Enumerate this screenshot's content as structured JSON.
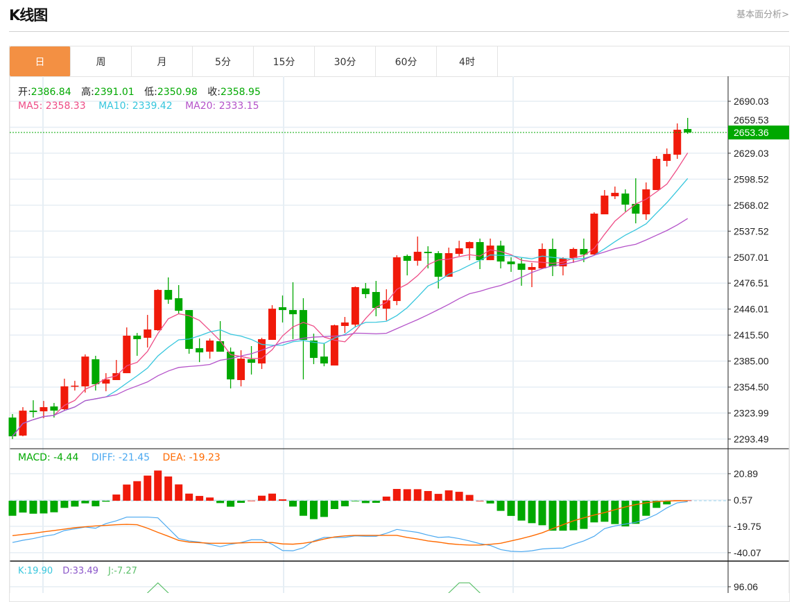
{
  "header": {
    "title": "K线图",
    "link": "基本面分析>"
  },
  "tabs": [
    {
      "label": "日",
      "active": true
    },
    {
      "label": "周"
    },
    {
      "label": "月"
    },
    {
      "label": "5分"
    },
    {
      "label": "15分"
    },
    {
      "label": "30分"
    },
    {
      "label": "60分"
    },
    {
      "label": "4时"
    }
  ],
  "ohlc_info": {
    "open_label": "开:",
    "open": "2386.84",
    "high_label": "高:",
    "high": "2391.01",
    "low_label": "低:",
    "low": "2350.98",
    "close_label": "收:",
    "close": "2358.95"
  },
  "ma_info": {
    "ma5": "MA5: 2358.33",
    "ma10": "MA10: 2339.42",
    "ma20": "MA20: 2333.15"
  },
  "macd_info": {
    "macd": "MACD: -4.44",
    "diff": "DIFF: -21.45",
    "dea": "DEA: -19.23"
  },
  "kdj_info": {
    "k": "K:19.90",
    "d": "D:33.49",
    "j": "J:-7.27"
  },
  "colors": {
    "up": "#f01a0a",
    "down": "#00a800",
    "ma5": "#ee4c86",
    "ma10": "#36c6dd",
    "ma20": "#b452c9",
    "diff": "#4aa8f0",
    "dea": "#ff6a00",
    "j": "#5cc06a",
    "active_tab": "#f39043"
  },
  "chart_data": [
    {
      "type": "candlestick",
      "title": "K线图",
      "ylim": [
        2293.49,
        2690.03
      ],
      "y_ticks": [
        "2690.03",
        "2659.53",
        "2629.03",
        "2598.52",
        "2568.02",
        "2537.52",
        "2507.01",
        "2476.51",
        "2446.01",
        "2415.50",
        "2385.00",
        "2354.50",
        "2323.99",
        "2293.49"
      ],
      "last_price": "2653.36",
      "ma_periods": [
        5,
        10,
        20
      ],
      "ohlc": [
        [
          2318.7,
          2322.8,
          2293.4,
          2296.7
        ],
        [
          2297.5,
          2330.9,
          2296.7,
          2326.8
        ],
        [
          2326.8,
          2339.0,
          2318.7,
          2325.2
        ],
        [
          2326.0,
          2338.2,
          2317.9,
          2330.9
        ],
        [
          2331.7,
          2335.8,
          2318.7,
          2326.8
        ],
        [
          2328.5,
          2364.3,
          2326.8,
          2355.3
        ],
        [
          2355.3,
          2361.8,
          2350.4,
          2356.1
        ],
        [
          2355.3,
          2392.8,
          2348.0,
          2390.3
        ],
        [
          2387.1,
          2391.2,
          2350.4,
          2357.8
        ],
        [
          2358.6,
          2370.8,
          2349.6,
          2363.5
        ],
        [
          2362.7,
          2386.3,
          2362.7,
          2370.8
        ],
        [
          2370.8,
          2424.5,
          2370.8,
          2414.8
        ],
        [
          2414.8,
          2418.0,
          2391.2,
          2410.7
        ],
        [
          2412.3,
          2439.2,
          2400.9,
          2422.1
        ],
        [
          2421.3,
          2469.3,
          2420.5,
          2468.5
        ],
        [
          2468.5,
          2483.2,
          2452.2,
          2457.1
        ],
        [
          2458.8,
          2474.2,
          2440.8,
          2444.1
        ],
        [
          2444.9,
          2444.9,
          2393.6,
          2399.3
        ],
        [
          2400.1,
          2411.5,
          2383.8,
          2395.2
        ],
        [
          2396.0,
          2411.5,
          2387.9,
          2409.1
        ],
        [
          2408.3,
          2431.9,
          2396.0,
          2396.0
        ],
        [
          2396.0,
          2400.9,
          2352.9,
          2363.5
        ],
        [
          2362.7,
          2397.7,
          2355.3,
          2387.9
        ],
        [
          2387.1,
          2402.6,
          2369.2,
          2383.0
        ],
        [
          2382.2,
          2412.3,
          2375.7,
          2410.7
        ],
        [
          2409.9,
          2450.6,
          2409.9,
          2446.5
        ],
        [
          2448.2,
          2462.0,
          2430.3,
          2444.9
        ],
        [
          2444.9,
          2477.5,
          2410.7,
          2440.0
        ],
        [
          2444.9,
          2458.8,
          2363.5,
          2409.9
        ],
        [
          2409.1,
          2417.2,
          2381.4,
          2388.7
        ],
        [
          2390.3,
          2405.8,
          2378.9,
          2382.2
        ],
        [
          2379.8,
          2427.8,
          2379.8,
          2427.0
        ],
        [
          2426.2,
          2436.8,
          2418.0,
          2430.3
        ],
        [
          2427.8,
          2472.6,
          2424.5,
          2471.8
        ],
        [
          2470.2,
          2476.7,
          2458.8,
          2463.6
        ],
        [
          2466.1,
          2479.1,
          2437.6,
          2447.4
        ],
        [
          2446.5,
          2469.3,
          2432.7,
          2456.3
        ],
        [
          2455.5,
          2509.2,
          2450.6,
          2506.8
        ],
        [
          2508.4,
          2510.1,
          2485.6,
          2502.7
        ],
        [
          2502.7,
          2531.2,
          2497.0,
          2513.3
        ],
        [
          2513.3,
          2519.8,
          2493.8,
          2511.7
        ],
        [
          2511.7,
          2514.1,
          2470.2,
          2484.0
        ],
        [
          2484.0,
          2518.2,
          2484.0,
          2511.7
        ],
        [
          2510.9,
          2526.3,
          2508.4,
          2517.4
        ],
        [
          2517.4,
          2525.5,
          2503.5,
          2524.7
        ],
        [
          2524.7,
          2528.8,
          2493.0,
          2503.5
        ],
        [
          2503.5,
          2528.8,
          2503.5,
          2520.6
        ],
        [
          2520.6,
          2526.3,
          2493.8,
          2501.9
        ],
        [
          2501.9,
          2506.8,
          2489.7,
          2498.7
        ],
        [
          2499.5,
          2506.0,
          2473.4,
          2492.1
        ],
        [
          2492.1,
          2500.3,
          2471.8,
          2495.4
        ],
        [
          2493.8,
          2523.1,
          2493.8,
          2516.6
        ],
        [
          2516.6,
          2528.8,
          2484.8,
          2496.2
        ],
        [
          2496.2,
          2506.8,
          2485.6,
          2505.2
        ],
        [
          2506.0,
          2518.2,
          2500.3,
          2516.6
        ],
        [
          2516.6,
          2528.8,
          2501.1,
          2510.1
        ],
        [
          2510.1,
          2559.7,
          2510.1,
          2558.1
        ],
        [
          2557.3,
          2585.8,
          2557.3,
          2579.3
        ],
        [
          2578.5,
          2589.9,
          2575.2,
          2582.5
        ],
        [
          2581.7,
          2586.6,
          2560.5,
          2568.7
        ],
        [
          2569.5,
          2599.6,
          2546.7,
          2558.1
        ],
        [
          2557.3,
          2594.7,
          2550.8,
          2586.6
        ],
        [
          2585.8,
          2625.7,
          2585.8,
          2622.4
        ],
        [
          2620.0,
          2634.6,
          2613.5,
          2628.1
        ],
        [
          2627.3,
          2664.0,
          2622.4,
          2656.6
        ],
        [
          2657.4,
          2670.5,
          2651.7,
          2653.36
        ]
      ]
    },
    {
      "type": "bar+line",
      "title": "MACD",
      "ylim": [
        -40.07,
        30
      ],
      "y_ticks": [
        "20.89",
        "0.57",
        "-19.75",
        "-40.07"
      ],
      "macd": [
        -11.6,
        -9.1,
        -10.0,
        -9.8,
        -8.9,
        -5.5,
        -4.5,
        -2.0,
        -4.3,
        -0.7,
        4.8,
        12.5,
        15.1,
        19.4,
        23.3,
        18.7,
        12.6,
        5.5,
        3.7,
        2.5,
        -1.8,
        -4.6,
        -1.6,
        0.1,
        3.9,
        5.5,
        1.1,
        -4.5,
        -11.6,
        -14.2,
        -12.5,
        -6.4,
        -4.3,
        -0.3,
        -1.8,
        -1.6,
        3.2,
        9.1,
        8.9,
        8.9,
        7.5,
        5.3,
        8.0,
        6.9,
        4.5,
        0.0,
        -2.1,
        -7.8,
        -11.7,
        -15.3,
        -17.3,
        -18.9,
        -23.1,
        -23.1,
        -22.8,
        -21.7,
        -16.7,
        -16.2,
        -18.0,
        -19.8,
        -17.8,
        -11.6,
        -5.5,
        -2.8,
        0.4,
        0.3
      ],
      "diff": [
        -32.2,
        -30.5,
        -29.2,
        -27.4,
        -26.2,
        -23.0,
        -21.7,
        -20.3,
        -21.2,
        -17.6,
        -15.5,
        -12.6,
        -12.6,
        -12.6,
        -13.2,
        -21.2,
        -29.2,
        -31.0,
        -31.9,
        -33.6,
        -35.4,
        -33.6,
        -32.2,
        -30.1,
        -30.1,
        -33.6,
        -38.4,
        -38.6,
        -36.3,
        -31.0,
        -28.3,
        -28.3,
        -28.3,
        -27.1,
        -27.4,
        -27.4,
        -25.1,
        -22.1,
        -23.3,
        -24.4,
        -26.5,
        -28.3,
        -27.9,
        -29.2,
        -31.0,
        -33.1,
        -34.5,
        -37.7,
        -39.0,
        -39.3,
        -38.6,
        -37.2,
        -36.7,
        -36.5,
        -33.6,
        -31.0,
        -27.4,
        -21.5,
        -19.4,
        -18.0,
        -16.7,
        -14.1,
        -10.5,
        -5.5,
        -1.6,
        -0.7
      ],
      "dea": [
        -26.9,
        -26.0,
        -25.1,
        -24.0,
        -23.0,
        -21.9,
        -20.8,
        -20.1,
        -19.4,
        -19.0,
        -18.5,
        -18.2,
        -18.5,
        -21.2,
        -24.4,
        -27.4,
        -30.6,
        -31.9,
        -32.3,
        -32.8,
        -32.8,
        -32.8,
        -32.5,
        -32.2,
        -32.2,
        -32.2,
        -33.3,
        -33.5,
        -32.8,
        -31.5,
        -29.5,
        -27.9,
        -27.1,
        -26.7,
        -26.7,
        -26.7,
        -26.7,
        -26.7,
        -28.3,
        -29.5,
        -31.0,
        -31.9,
        -33.1,
        -33.8,
        -34.2,
        -34.2,
        -33.6,
        -32.8,
        -31.0,
        -29.2,
        -27.1,
        -24.7,
        -21.5,
        -18.5,
        -15.5,
        -13.2,
        -11.0,
        -9.1,
        -6.9,
        -4.8,
        -3.0,
        -1.6,
        -0.7,
        -0.2,
        0.0,
        0.0
      ]
    },
    {
      "type": "line",
      "title": "KDJ",
      "y_ticks": [
        "96.06"
      ],
      "j": [
        50,
        50,
        50,
        50,
        50,
        50,
        50,
        50,
        50,
        50,
        50,
        50,
        60,
        85,
        103,
        85,
        60,
        50,
        50,
        50,
        50,
        50,
        50,
        50,
        50,
        50,
        50,
        50,
        50,
        50,
        50,
        50,
        50,
        50,
        50,
        50,
        50,
        50,
        50,
        50,
        50,
        60,
        85,
        103,
        103,
        85,
        60,
        50,
        50,
        50,
        50,
        50,
        50,
        50,
        50,
        50,
        50,
        50,
        50,
        50,
        50,
        50,
        50,
        50,
        50,
        50
      ]
    }
  ]
}
